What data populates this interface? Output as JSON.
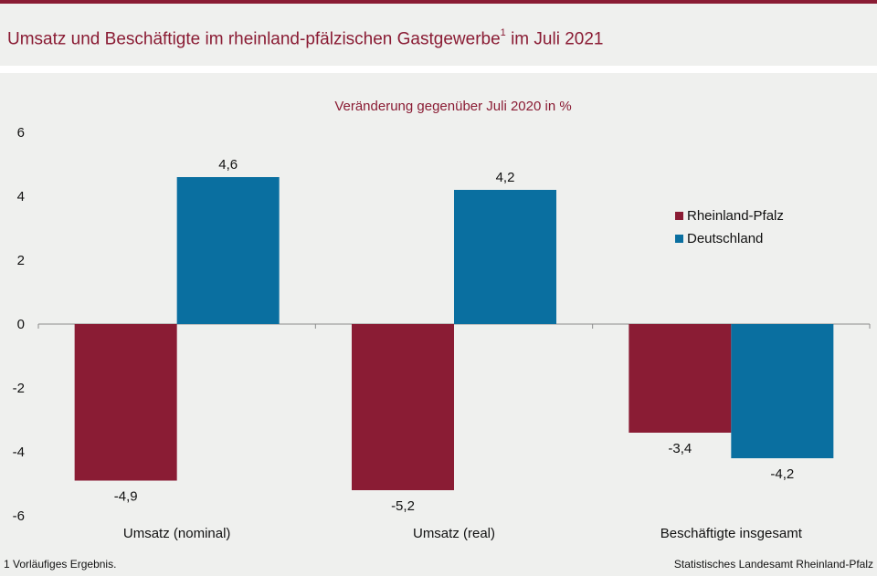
{
  "header": {
    "title": "Umsatz und Beschäftigte im rheinland-pfälzischen Gastgewerbe",
    "title_sup": "1",
    "title_suffix": " im Juli 2021"
  },
  "footer": {
    "footnote": "1 Vorläufiges Ergebnis.",
    "source": "Statistisches Landesamt Rheinland-Pfalz"
  },
  "chart_data": {
    "type": "bar",
    "title": "",
    "subtitle": "Veränderung gegenüber Juli 2020 in %",
    "categories": [
      "Umsatz (nominal)",
      "Umsatz (real)",
      "Beschäftigte insgesamt"
    ],
    "series": [
      {
        "name": "Rheinland-Pfalz",
        "color": "#8a1c34",
        "values": [
          -4.9,
          -5.2,
          -3.4
        ],
        "labels": [
          "-4,9",
          "-5,2",
          "-3,4"
        ]
      },
      {
        "name": "Deutschland",
        "color": "#0a6fa0",
        "values": [
          4.6,
          4.2,
          -4.2
        ],
        "labels": [
          "4,6",
          "4,2",
          "-4,2"
        ]
      }
    ],
    "ylim": [
      -6,
      6
    ],
    "yticks": [
      6,
      4,
      2,
      0,
      -2,
      -4,
      -6
    ],
    "ytick_labels": [
      "6",
      "4",
      "2",
      "0",
      "-2",
      "-4",
      "-6"
    ],
    "grid": false,
    "legend": "right"
  }
}
